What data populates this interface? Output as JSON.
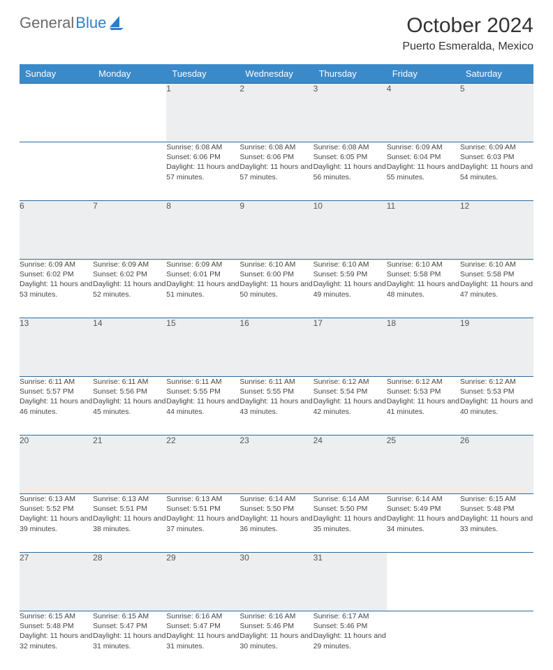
{
  "page": {
    "brand_prefix": "General",
    "brand_suffix": "Blue",
    "title": "October 2024",
    "location": "Puerto Esmeralda, Mexico",
    "accent_color": "#3a89c9",
    "rule_color": "#2a6aa0",
    "daynum_bg": "#eceeef"
  },
  "weekdays": [
    "Sunday",
    "Monday",
    "Tuesday",
    "Wednesday",
    "Thursday",
    "Friday",
    "Saturday"
  ],
  "weeks": [
    [
      {
        "num": "",
        "sr": "",
        "ss": "",
        "dl": ""
      },
      {
        "num": "",
        "sr": "",
        "ss": "",
        "dl": ""
      },
      {
        "num": "1",
        "sr": "Sunrise: 6:08 AM",
        "ss": "Sunset: 6:06 PM",
        "dl": "Daylight: 11 hours and 57 minutes."
      },
      {
        "num": "2",
        "sr": "Sunrise: 6:08 AM",
        "ss": "Sunset: 6:06 PM",
        "dl": "Daylight: 11 hours and 57 minutes."
      },
      {
        "num": "3",
        "sr": "Sunrise: 6:08 AM",
        "ss": "Sunset: 6:05 PM",
        "dl": "Daylight: 11 hours and 56 minutes."
      },
      {
        "num": "4",
        "sr": "Sunrise: 6:09 AM",
        "ss": "Sunset: 6:04 PM",
        "dl": "Daylight: 11 hours and 55 minutes."
      },
      {
        "num": "5",
        "sr": "Sunrise: 6:09 AM",
        "ss": "Sunset: 6:03 PM",
        "dl": "Daylight: 11 hours and 54 minutes."
      }
    ],
    [
      {
        "num": "6",
        "sr": "Sunrise: 6:09 AM",
        "ss": "Sunset: 6:02 PM",
        "dl": "Daylight: 11 hours and 53 minutes."
      },
      {
        "num": "7",
        "sr": "Sunrise: 6:09 AM",
        "ss": "Sunset: 6:02 PM",
        "dl": "Daylight: 11 hours and 52 minutes."
      },
      {
        "num": "8",
        "sr": "Sunrise: 6:09 AM",
        "ss": "Sunset: 6:01 PM",
        "dl": "Daylight: 11 hours and 51 minutes."
      },
      {
        "num": "9",
        "sr": "Sunrise: 6:10 AM",
        "ss": "Sunset: 6:00 PM",
        "dl": "Daylight: 11 hours and 50 minutes."
      },
      {
        "num": "10",
        "sr": "Sunrise: 6:10 AM",
        "ss": "Sunset: 5:59 PM",
        "dl": "Daylight: 11 hours and 49 minutes."
      },
      {
        "num": "11",
        "sr": "Sunrise: 6:10 AM",
        "ss": "Sunset: 5:58 PM",
        "dl": "Daylight: 11 hours and 48 minutes."
      },
      {
        "num": "12",
        "sr": "Sunrise: 6:10 AM",
        "ss": "Sunset: 5:58 PM",
        "dl": "Daylight: 11 hours and 47 minutes."
      }
    ],
    [
      {
        "num": "13",
        "sr": "Sunrise: 6:11 AM",
        "ss": "Sunset: 5:57 PM",
        "dl": "Daylight: 11 hours and 46 minutes."
      },
      {
        "num": "14",
        "sr": "Sunrise: 6:11 AM",
        "ss": "Sunset: 5:56 PM",
        "dl": "Daylight: 11 hours and 45 minutes."
      },
      {
        "num": "15",
        "sr": "Sunrise: 6:11 AM",
        "ss": "Sunset: 5:55 PM",
        "dl": "Daylight: 11 hours and 44 minutes."
      },
      {
        "num": "16",
        "sr": "Sunrise: 6:11 AM",
        "ss": "Sunset: 5:55 PM",
        "dl": "Daylight: 11 hours and 43 minutes."
      },
      {
        "num": "17",
        "sr": "Sunrise: 6:12 AM",
        "ss": "Sunset: 5:54 PM",
        "dl": "Daylight: 11 hours and 42 minutes."
      },
      {
        "num": "18",
        "sr": "Sunrise: 6:12 AM",
        "ss": "Sunset: 5:53 PM",
        "dl": "Daylight: 11 hours and 41 minutes."
      },
      {
        "num": "19",
        "sr": "Sunrise: 6:12 AM",
        "ss": "Sunset: 5:53 PM",
        "dl": "Daylight: 11 hours and 40 minutes."
      }
    ],
    [
      {
        "num": "20",
        "sr": "Sunrise: 6:13 AM",
        "ss": "Sunset: 5:52 PM",
        "dl": "Daylight: 11 hours and 39 minutes."
      },
      {
        "num": "21",
        "sr": "Sunrise: 6:13 AM",
        "ss": "Sunset: 5:51 PM",
        "dl": "Daylight: 11 hours and 38 minutes."
      },
      {
        "num": "22",
        "sr": "Sunrise: 6:13 AM",
        "ss": "Sunset: 5:51 PM",
        "dl": "Daylight: 11 hours and 37 minutes."
      },
      {
        "num": "23",
        "sr": "Sunrise: 6:14 AM",
        "ss": "Sunset: 5:50 PM",
        "dl": "Daylight: 11 hours and 36 minutes."
      },
      {
        "num": "24",
        "sr": "Sunrise: 6:14 AM",
        "ss": "Sunset: 5:50 PM",
        "dl": "Daylight: 11 hours and 35 minutes."
      },
      {
        "num": "25",
        "sr": "Sunrise: 6:14 AM",
        "ss": "Sunset: 5:49 PM",
        "dl": "Daylight: 11 hours and 34 minutes."
      },
      {
        "num": "26",
        "sr": "Sunrise: 6:15 AM",
        "ss": "Sunset: 5:48 PM",
        "dl": "Daylight: 11 hours and 33 minutes."
      }
    ],
    [
      {
        "num": "27",
        "sr": "Sunrise: 6:15 AM",
        "ss": "Sunset: 5:48 PM",
        "dl": "Daylight: 11 hours and 32 minutes."
      },
      {
        "num": "28",
        "sr": "Sunrise: 6:15 AM",
        "ss": "Sunset: 5:47 PM",
        "dl": "Daylight: 11 hours and 31 minutes."
      },
      {
        "num": "29",
        "sr": "Sunrise: 6:16 AM",
        "ss": "Sunset: 5:47 PM",
        "dl": "Daylight: 11 hours and 31 minutes."
      },
      {
        "num": "30",
        "sr": "Sunrise: 6:16 AM",
        "ss": "Sunset: 5:46 PM",
        "dl": "Daylight: 11 hours and 30 minutes."
      },
      {
        "num": "31",
        "sr": "Sunrise: 6:17 AM",
        "ss": "Sunset: 5:46 PM",
        "dl": "Daylight: 11 hours and 29 minutes."
      },
      {
        "num": "",
        "sr": "",
        "ss": "",
        "dl": ""
      },
      {
        "num": "",
        "sr": "",
        "ss": "",
        "dl": ""
      }
    ]
  ]
}
